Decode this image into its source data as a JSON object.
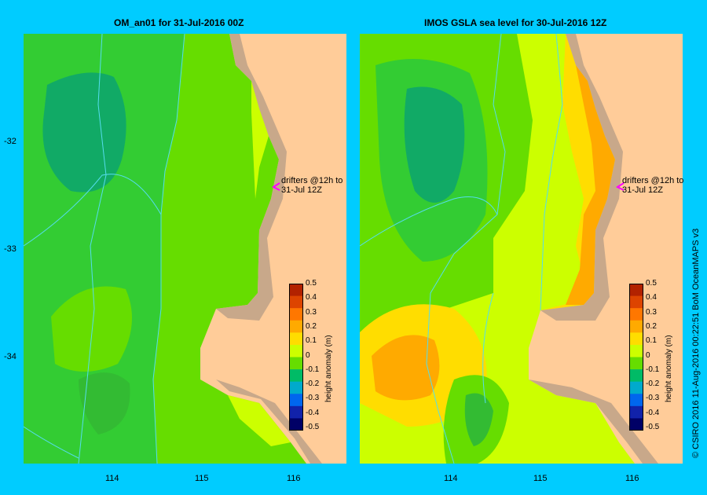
{
  "left_panel": {
    "title": "OM_an01  for 31-Jul-2016 00Z",
    "annotation_line1": "drifters @12h to",
    "annotation_line2": "31-Jul 12Z"
  },
  "right_panel": {
    "title": "IMOS GSLA sea level  for 30-Jul-2016 12Z",
    "annotation_line1": "drifters @12h to",
    "annotation_line2": "31-Jul 12Z"
  },
  "y_ticks": [
    "-32",
    "-33",
    "-34"
  ],
  "x_ticks": [
    "114",
    "115",
    "116"
  ],
  "colorbar": {
    "label": "height anomaly (m)",
    "ticks": [
      "0.5",
      "0.4",
      "0.3",
      "0.2",
      "0.1",
      "0",
      "-0.1",
      "-0.2",
      "-0.3",
      "-0.4",
      "-0.5"
    ],
    "colors": [
      "#b22200",
      "#dd4400",
      "#ff7700",
      "#ffaa00",
      "#ffdd00",
      "#ccff00",
      "#66dd00",
      "#00bb66",
      "#00aacc",
      "#0066ee",
      "#1122aa",
      "#000066"
    ]
  },
  "colors": {
    "background": "#00ccff",
    "land": "#ffcc99",
    "shelf": "#c8a88a",
    "drifter_marker": "#ff00ff"
  },
  "copyright": "© CSIRO 2016   11-Aug-2016 00:22:51 BoM OceanMAPS v3"
}
